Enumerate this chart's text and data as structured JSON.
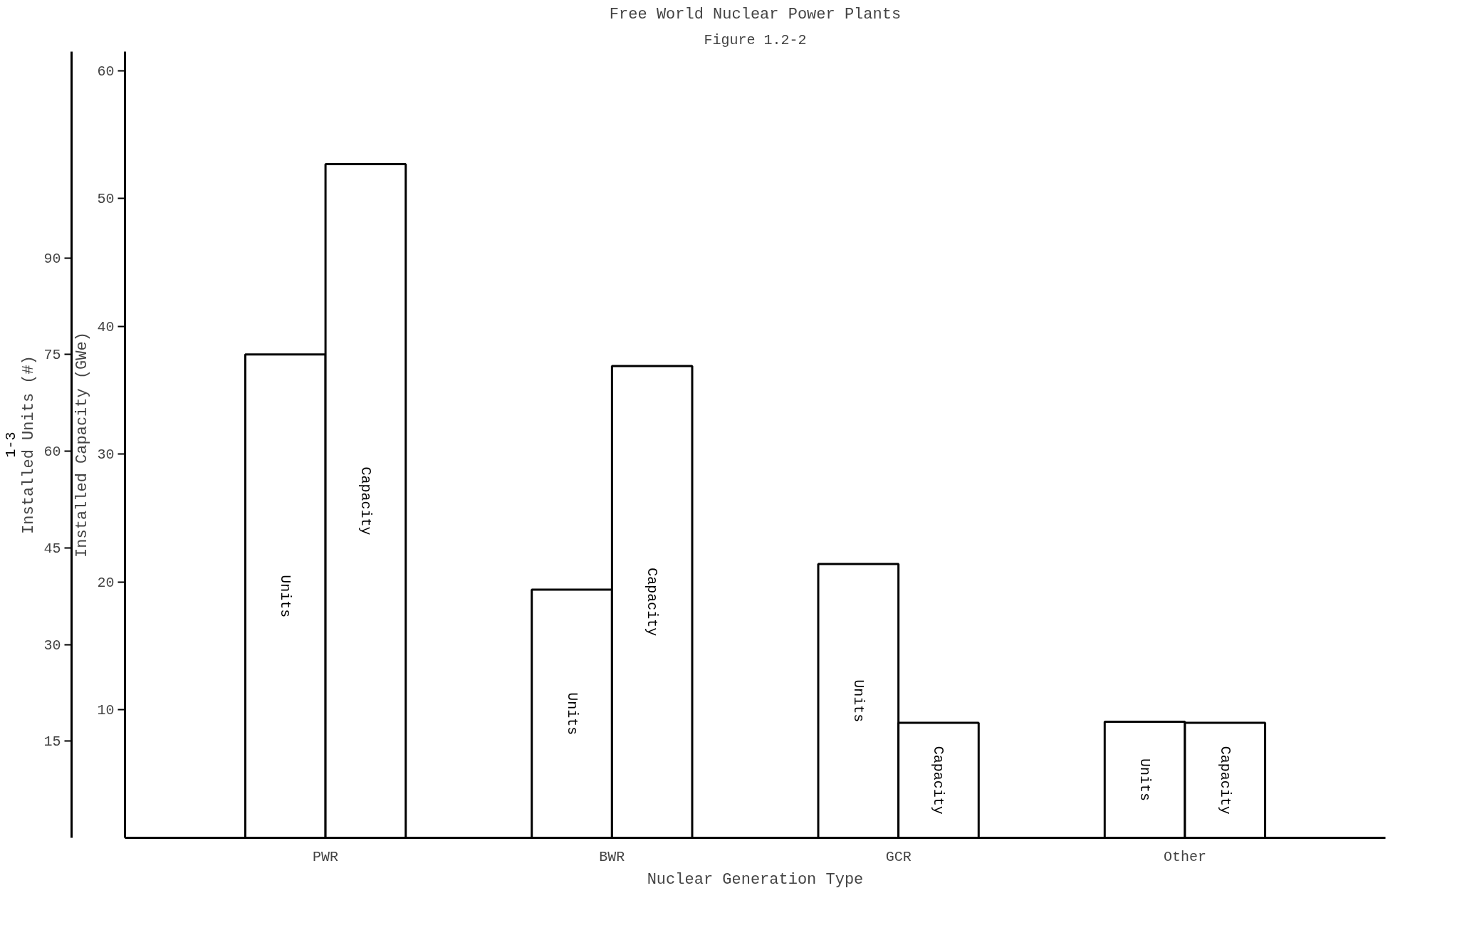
{
  "chart_data": {
    "type": "bar",
    "title": "Free World Nuclear Power Plants",
    "xlabel": "Nuclear Generation Type",
    "ylabel": "Installed Capacity (GWe)",
    "y2label": "Installed Units (#)",
    "annotations": [
      "Figure 1.2-2",
      "1-3"
    ],
    "categories": [
      "PWR",
      "BWR",
      "GCR",
      "Other"
    ],
    "series": [
      {
        "name": "Units",
        "color": "#ffffff",
        "axis": "y2",
        "values": [
          75,
          38.5,
          42.5,
          18
        ]
      },
      {
        "name": "Capacity",
        "color": "#ffffff",
        "values": [
          52.7,
          36.9,
          9,
          9
        ]
      }
    ],
    "ylim": [
      0,
      61.5
    ],
    "yticks": [
      10,
      20,
      30,
      40,
      50,
      60
    ],
    "y2lim": [
      0,
      122
    ],
    "y2ticks": [
      15,
      30,
      45,
      60,
      75,
      90
    ],
    "grid": false
  }
}
